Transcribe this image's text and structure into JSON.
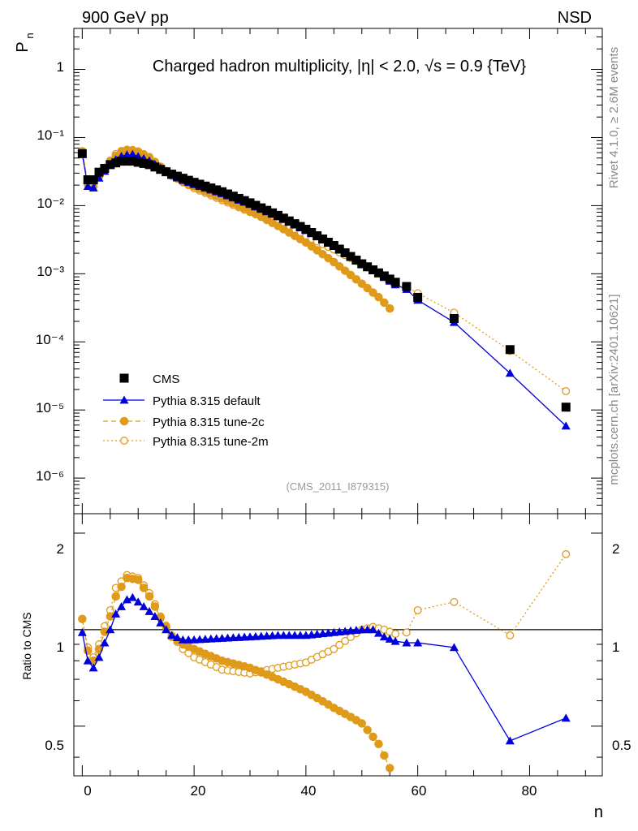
{
  "header": {
    "left": "900 GeV pp",
    "right": "NSD"
  },
  "side_text": {
    "rivet": "Rivet 4.1.0, ≥ 2.6M events",
    "mcplots": "mcplots.cern.ch [arXiv:2401.10621]"
  },
  "colors": {
    "cms": "#000000",
    "default": "#0000dd",
    "tune2c": "#e09a1a",
    "tune2m": "#e09a1a"
  },
  "chart_data": {
    "type": "line",
    "title": "Charged hadron multiplicity, |η| < 2.0, √s = 0.9 {TeV}",
    "analysis_id": "(CMS_2011_I879315)",
    "xlabel": "n",
    "ylabel": "P",
    "ylabel_sub": "n",
    "ratio_ylabel": "Ratio to CMS",
    "xlim": [
      -1.5,
      93
    ],
    "ylim_main": [
      3e-07,
      4
    ],
    "ylim_ratio": [
      0.35,
      2.3
    ],
    "x_ticks": [
      "0",
      "20",
      "40",
      "60",
      "80"
    ],
    "y_ticks_main": [
      "1",
      "10⁻¹",
      "10⁻²",
      "10⁻³",
      "10⁻⁴",
      "10⁻⁵",
      "10⁻⁶"
    ],
    "y_ticks_ratio": [
      "2",
      "1",
      "0.5"
    ],
    "legend": {
      "position": "bottom-left",
      "entries": [
        "CMS",
        "Pythia 8.315 default",
        "Pythia 8.315 tune-2c",
        "Pythia 8.315 tune-2m"
      ]
    },
    "cms_knots": [
      [
        0,
        0.058
      ],
      [
        1,
        0.024
      ],
      [
        2,
        0.024
      ],
      [
        3,
        0.031
      ],
      [
        5,
        0.04
      ],
      [
        7,
        0.045
      ],
      [
        9,
        0.045
      ],
      [
        12,
        0.04
      ],
      [
        16,
        0.029
      ],
      [
        20,
        0.022
      ],
      [
        25,
        0.016
      ],
      [
        30,
        0.011
      ],
      [
        35,
        0.0072
      ],
      [
        40,
        0.0045
      ],
      [
        45,
        0.0026
      ],
      [
        50,
        0.0014
      ],
      [
        54,
        0.00093
      ],
      [
        56,
        0.00075
      ],
      [
        58,
        0.00065
      ],
      [
        60,
        0.00045
      ],
      [
        66.5,
        0.00022
      ],
      [
        76.5,
        7.7e-05
      ],
      [
        86.5,
        1.1e-05
      ]
    ],
    "series": [
      {
        "name": "Pythia 8.315 default",
        "ratio_knots": [
          [
            0,
            0.98
          ],
          [
            1,
            0.8
          ],
          [
            2,
            0.76
          ],
          [
            3,
            0.82
          ],
          [
            5,
            1.0
          ],
          [
            6,
            1.12
          ],
          [
            8,
            1.24
          ],
          [
            9,
            1.26
          ],
          [
            11,
            1.18
          ],
          [
            13,
            1.1
          ],
          [
            15,
            1.0
          ],
          [
            16,
            0.96
          ],
          [
            18,
            0.93
          ],
          [
            20,
            0.93
          ],
          [
            25,
            0.94
          ],
          [
            30,
            0.95
          ],
          [
            35,
            0.96
          ],
          [
            40,
            0.96
          ],
          [
            45,
            0.98
          ],
          [
            50,
            1.0
          ],
          [
            52,
            1.0
          ],
          [
            54,
            0.95
          ],
          [
            56,
            0.92
          ],
          [
            58,
            0.91
          ],
          [
            60,
            0.91
          ],
          [
            66.5,
            0.88
          ],
          [
            76.5,
            0.45
          ],
          [
            86.5,
            0.53
          ]
        ]
      },
      {
        "name": "Pythia 8.315 tune-2c",
        "ratio_knots": [
          [
            0,
            1.08
          ],
          [
            1,
            0.86
          ],
          [
            2,
            0.8
          ],
          [
            3,
            0.87
          ],
          [
            5,
            1.1
          ],
          [
            6,
            1.27
          ],
          [
            8,
            1.45
          ],
          [
            10,
            1.43
          ],
          [
            12,
            1.27
          ],
          [
            14,
            1.09
          ],
          [
            16,
            0.95
          ],
          [
            18,
            0.9
          ],
          [
            20,
            0.87
          ],
          [
            22,
            0.84
          ],
          [
            25,
            0.8
          ],
          [
            30,
            0.76
          ],
          [
            35,
            0.7
          ],
          [
            40,
            0.64
          ],
          [
            45,
            0.57
          ],
          [
            50,
            0.51
          ],
          [
            53,
            0.44
          ],
          [
            55,
            0.37
          ]
        ]
      },
      {
        "name": "Pythia 8.315 tune-2m",
        "ratio_knots": [
          [
            0,
            1.08
          ],
          [
            1,
            0.88
          ],
          [
            2,
            0.82
          ],
          [
            3,
            0.9
          ],
          [
            5,
            1.15
          ],
          [
            6,
            1.35
          ],
          [
            8,
            1.48
          ],
          [
            10,
            1.45
          ],
          [
            12,
            1.3
          ],
          [
            14,
            1.1
          ],
          [
            16,
            0.96
          ],
          [
            18,
            0.87
          ],
          [
            20,
            0.82
          ],
          [
            25,
            0.75
          ],
          [
            30,
            0.73
          ],
          [
            35,
            0.76
          ],
          [
            40,
            0.79
          ],
          [
            45,
            0.87
          ],
          [
            50,
            1.0
          ],
          [
            52,
            1.02
          ],
          [
            54,
            1.0
          ],
          [
            56,
            0.97
          ],
          [
            58,
            0.98
          ],
          [
            60,
            1.15
          ],
          [
            66.5,
            1.22
          ],
          [
            76.5,
            0.96
          ],
          [
            86.5,
            1.72
          ]
        ]
      }
    ]
  }
}
